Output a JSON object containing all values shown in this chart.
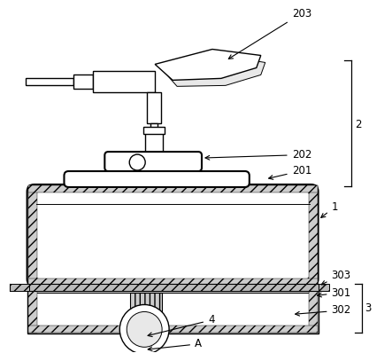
{
  "bg_color": "#ffffff",
  "line_color": "#000000",
  "figsize": [
    4.43,
    3.98
  ],
  "dpi": 100,
  "hatch_gray": "#c8c8c8",
  "wall_hatch": "///",
  "fs_label": 8.5
}
